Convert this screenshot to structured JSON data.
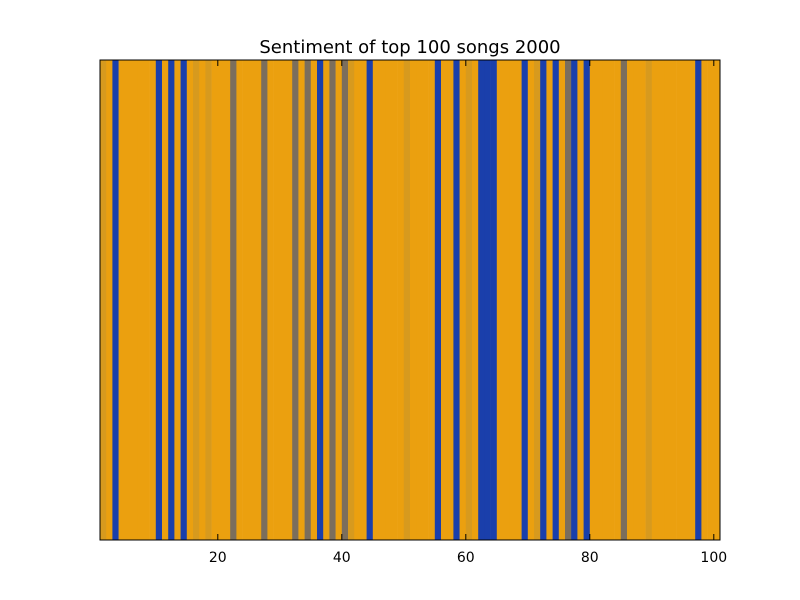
{
  "chart_data": {
    "type": "bar",
    "title": "Sentiment of top 100 songs 2000",
    "xlabel": "",
    "ylabel": "",
    "xlim": [
      1,
      101
    ],
    "xticks": [
      20,
      40,
      60,
      80,
      100
    ],
    "yticks_shown": false,
    "grid": false,
    "colors": {
      "positive": "#EBA00F",
      "negative": "#1A3FAB",
      "neutral": "#7B6E5D",
      "mixed": "#D79A1E"
    },
    "categories": [
      1,
      2,
      3,
      4,
      5,
      6,
      7,
      8,
      9,
      10,
      11,
      12,
      13,
      14,
      15,
      16,
      17,
      18,
      19,
      20,
      21,
      22,
      23,
      24,
      25,
      26,
      27,
      28,
      29,
      30,
      31,
      32,
      33,
      34,
      35,
      36,
      37,
      38,
      39,
      40,
      41,
      42,
      43,
      44,
      45,
      46,
      47,
      48,
      49,
      50,
      51,
      52,
      53,
      54,
      55,
      56,
      57,
      58,
      59,
      60,
      61,
      62,
      63,
      64,
      65,
      66,
      67,
      68,
      69,
      70,
      71,
      72,
      73,
      74,
      75,
      76,
      77,
      78,
      79,
      80,
      81,
      82,
      83,
      84,
      85,
      86,
      87,
      88,
      89,
      90,
      91,
      92,
      93,
      94,
      95,
      96,
      97,
      98,
      99,
      100
    ],
    "values": [
      "mixed",
      "positive",
      "negative",
      "positive",
      "positive",
      "positive",
      "positive",
      "positive",
      "positive",
      "negative",
      "positive",
      "negative",
      "positive",
      "negative",
      "positive",
      "mixed",
      "positive",
      "mixed",
      "positive",
      "positive",
      "positive",
      "neutral",
      "positive",
      "positive",
      "positive",
      "positive",
      "neutral",
      "positive",
      "positive",
      "positive",
      "positive",
      "neutral",
      "positive",
      "neutral",
      "positive",
      "negative",
      "positive",
      "neutral",
      "positive",
      "neutral",
      "mixed",
      "positive",
      "positive",
      "negative",
      "positive",
      "positive",
      "positive",
      "positive",
      "positive",
      "mixed",
      "positive",
      "positive",
      "positive",
      "positive",
      "negative",
      "positive",
      "positive",
      "negative",
      "positive",
      "mixed",
      "positive",
      "negative",
      "negative",
      "negative",
      "positive",
      "positive",
      "positive",
      "positive",
      "negative",
      "positive",
      "mixed",
      "negative",
      "positive",
      "negative",
      "positive",
      "neutral",
      "negative",
      "positive",
      "negative",
      "positive",
      "positive",
      "positive",
      "positive",
      "positive",
      "neutral",
      "positive",
      "positive",
      "positive",
      "mixed",
      "positive",
      "positive",
      "positive",
      "positive",
      "positive",
      "positive",
      "positive",
      "negative",
      "positive",
      "positive",
      "positive"
    ]
  }
}
